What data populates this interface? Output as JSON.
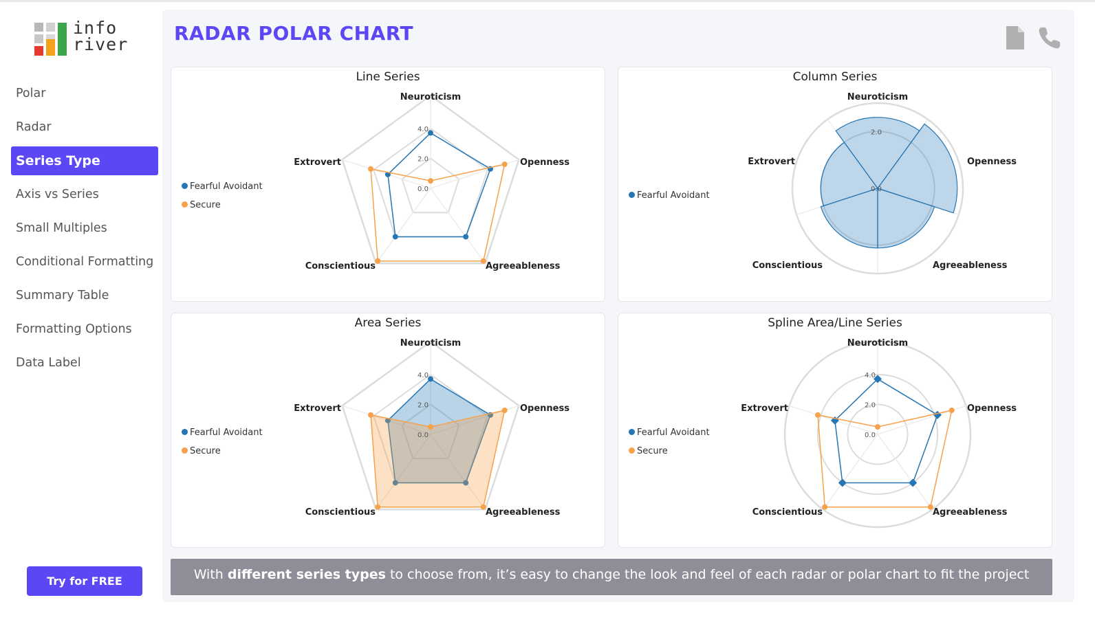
{
  "app": {
    "logo_text_line1": "info",
    "logo_text_line2": "river"
  },
  "sidebar": {
    "items": [
      {
        "label": "Polar",
        "active": false
      },
      {
        "label": "Radar",
        "active": false
      },
      {
        "label": "Series Type",
        "active": true
      },
      {
        "label": "Axis vs Series",
        "active": false
      },
      {
        "label": "Small Multiples",
        "active": false
      },
      {
        "label": "Conditional Formatting",
        "active": false
      },
      {
        "label": "Summary Table",
        "active": false
      },
      {
        "label": "Formatting Options",
        "active": false
      },
      {
        "label": "Data Label",
        "active": false
      }
    ],
    "cta_label": "Try for FREE"
  },
  "header": {
    "title": "RADAR POLAR CHART",
    "icons": [
      "document-icon",
      "phone-icon"
    ]
  },
  "colors": {
    "accent": "#5c47f5",
    "fearful_avoidant": "#2476b5",
    "secure": "#f7a14b",
    "grid": "#dcdcdc"
  },
  "footer": {
    "text_before": "With ",
    "text_bold": "different series types",
    "text_after": " to choose from, it’s easy to change the look and feel of each radar or polar chart to fit the project description."
  },
  "chart_data": [
    {
      "title": "Line Series",
      "type": "line",
      "grid_shape": "polygon",
      "categories": [
        "Neuroticism",
        "Openness",
        "Agreeableness",
        "Conscientious",
        "Extrovert"
      ],
      "radial_ticks": [
        "0.0",
        "2.0",
        "4.0"
      ],
      "rlim": [
        0,
        6.2
      ],
      "series": [
        {
          "name": "Fearful Avoidant",
          "color": "#2476b5",
          "values": [
            3.7,
            4.2,
            4.0,
            4.0,
            3.0
          ]
        },
        {
          "name": "Secure",
          "color": "#f7a14b",
          "values": [
            0.5,
            5.2,
            6.0,
            6.0,
            4.2
          ]
        }
      ],
      "legend_position": "left"
    },
    {
      "title": "Column Series",
      "type": "polar-column",
      "grid_shape": "circle",
      "categories": [
        "Neuroticism",
        "Openness",
        "Agreeableness",
        "Conscientious",
        "Extrovert"
      ],
      "radial_ticks": [
        "0.0",
        "2.0"
      ],
      "rlim": [
        0,
        3.0
      ],
      "series": [
        {
          "name": "Fearful Avoidant",
          "color": "#2476b5",
          "values": [
            2.5,
            2.8,
            2.1,
            2.1,
            2.0
          ]
        }
      ],
      "legend_position": "left"
    },
    {
      "title": "Area Series",
      "type": "area",
      "grid_shape": "polygon",
      "categories": [
        "Neuroticism",
        "Openness",
        "Agreeableness",
        "Conscientious",
        "Extrovert"
      ],
      "radial_ticks": [
        "0.0",
        "2.0",
        "4.0"
      ],
      "rlim": [
        0,
        6.2
      ],
      "series": [
        {
          "name": "Fearful Avoidant",
          "color": "#2476b5",
          "values": [
            3.7,
            4.2,
            4.0,
            4.0,
            3.0
          ]
        },
        {
          "name": "Secure",
          "color": "#f7a14b",
          "values": [
            0.5,
            5.2,
            6.0,
            6.0,
            4.2
          ]
        }
      ],
      "legend_position": "left"
    },
    {
      "title": "Spline Area/Line Series",
      "type": "spline",
      "grid_shape": "circle",
      "categories": [
        "Neuroticism",
        "Openness",
        "Agreeableness",
        "Conscientious",
        "Extrovert"
      ],
      "radial_ticks": [
        "0.0",
        "2.0",
        "4.0"
      ],
      "rlim": [
        0,
        6.2
      ],
      "series": [
        {
          "name": "Fearful Avoidant",
          "color": "#2476b5",
          "values": [
            3.7,
            4.2,
            4.0,
            4.0,
            3.0
          ]
        },
        {
          "name": "Secure",
          "color": "#f7a14b",
          "values": [
            0.5,
            5.2,
            6.0,
            6.0,
            4.2
          ]
        }
      ],
      "legend_position": "left"
    }
  ]
}
